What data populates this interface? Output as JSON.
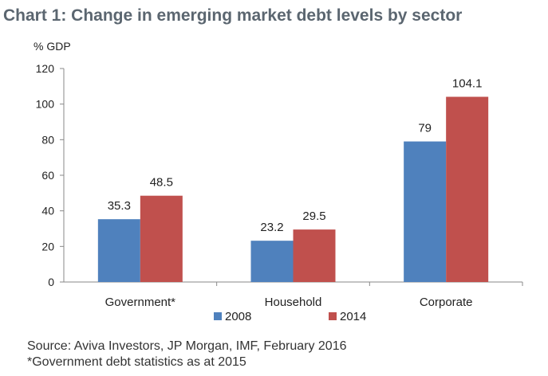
{
  "title": "Chart 1: Change in emerging market debt levels by sector",
  "chart_data": {
    "type": "bar",
    "ylabel": "% GDP",
    "ylim": [
      0,
      120
    ],
    "yticks": [
      "0",
      "20",
      "40",
      "60",
      "80",
      "100",
      "120"
    ],
    "grid": false,
    "legend_position": "bottom",
    "categories": [
      "Government*",
      "Household",
      "Corporate"
    ],
    "series": [
      {
        "name": "2008",
        "color": "#4f81bd",
        "values": [
          35.3,
          23.2,
          79
        ],
        "labels": [
          "35.3",
          "23.2",
          "79"
        ]
      },
      {
        "name": "2014",
        "color": "#c0504d",
        "values": [
          48.5,
          29.5,
          104.1
        ],
        "labels": [
          "48.5",
          "29.5",
          "104.1"
        ]
      }
    ]
  },
  "footer": {
    "source": "Source: Aviva Investors, JP Morgan, IMF, February 2016",
    "note": "*Government debt statistics as at 2015"
  }
}
